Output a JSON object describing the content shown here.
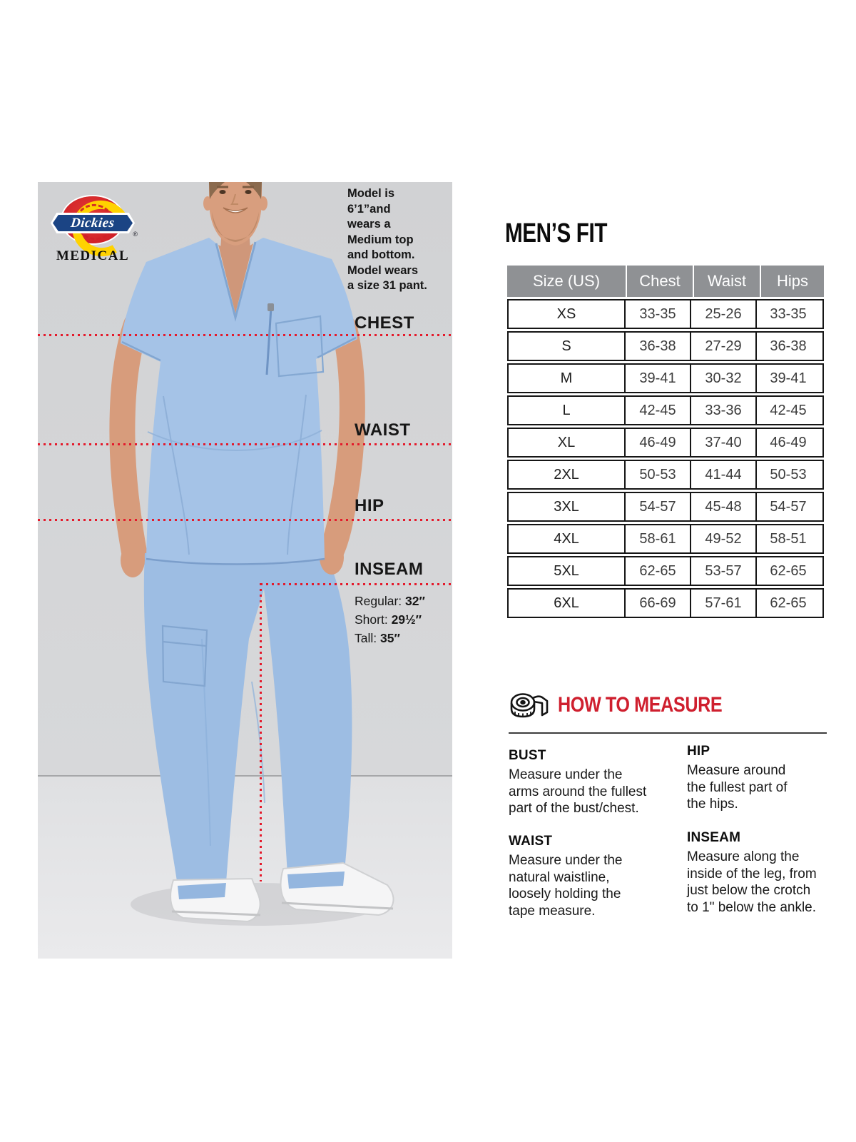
{
  "brand": {
    "logo_text": "Dickies",
    "registered": "®",
    "sub_brand": "MEDICAL"
  },
  "photo": {
    "model_info": "Model is\n6’1”and\nwears a\nMedium top\nand bottom.\nModel wears\na size 31 pant.",
    "labels": {
      "chest": "CHEST",
      "waist": "WAIST",
      "hip": "HIP",
      "inseam": "INSEAM"
    },
    "inseam_options": [
      {
        "label": "Regular:",
        "value": "32″"
      },
      {
        "label": "Short:",
        "value": "29½″"
      },
      {
        "label": "Tall:",
        "value": "35″"
      }
    ]
  },
  "size_chart": {
    "title": "MEN’S FIT",
    "headers": [
      "Size (US)",
      "Chest",
      "Waist",
      "Hips"
    ],
    "rows": [
      [
        "XS",
        "33-35",
        "25-26",
        "33-35"
      ],
      [
        "S",
        "36-38",
        "27-29",
        "36-38"
      ],
      [
        "M",
        "39-41",
        "30-32",
        "39-41"
      ],
      [
        "L",
        "42-45",
        "33-36",
        "42-45"
      ],
      [
        "XL",
        "46-49",
        "37-40",
        "46-49"
      ],
      [
        "2XL",
        "50-53",
        "41-44",
        "50-53"
      ],
      [
        "3XL",
        "54-57",
        "45-48",
        "54-57"
      ],
      [
        "4XL",
        "58-61",
        "49-52",
        "58-51"
      ],
      [
        "5XL",
        "62-65",
        "53-57",
        "62-65"
      ],
      [
        "6XL",
        "66-69",
        "57-61",
        "62-65"
      ]
    ]
  },
  "how_to_measure": {
    "title": "HOW TO MEASURE",
    "sections": [
      {
        "title": "BUST",
        "text": "Measure under the\narms around the fullest\npart of the bust/chest."
      },
      {
        "title": "WAIST",
        "text": "Measure under the\nnatural waistline,\nloosely holding the\ntape measure."
      },
      {
        "title": "HIP",
        "text": "Measure around\nthe fullest part of\nthe hips."
      },
      {
        "title": "INSEAM",
        "text": "Measure along the\ninside of the leg, from\njust below the crotch\nto 1\" below the ankle."
      }
    ]
  },
  "colors": {
    "accent_red": "#cf1f2e",
    "dot_red": "#e41a2b",
    "header_grey": "#8f9194",
    "scrub_blue": "#a5c3e7"
  }
}
